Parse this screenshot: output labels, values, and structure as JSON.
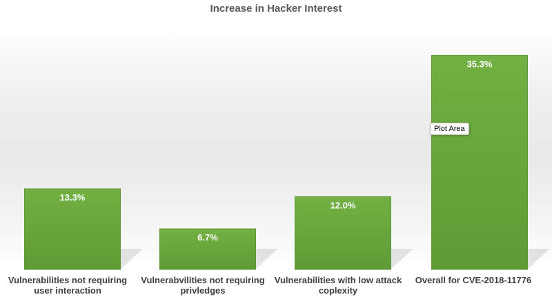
{
  "chart_data": {
    "type": "bar",
    "title": "Increase in Hacker Interest",
    "categories": [
      "Vulnerabilities not requiring user interaction",
      "Vulnerabvilities not requiring privledges",
      "Vulnerabilities with low attack coplexity",
      "Overall for CVE-2018-11776"
    ],
    "values": [
      13.3,
      6.7,
      12.0,
      35.3
    ],
    "data_labels": [
      "13.3%",
      "6.7%",
      "12.0%",
      "35.3%"
    ],
    "ylim": [
      0,
      40
    ],
    "grid": false,
    "legend": "none",
    "bar_color": "#70ad47"
  },
  "tooltip": "Plot Area"
}
